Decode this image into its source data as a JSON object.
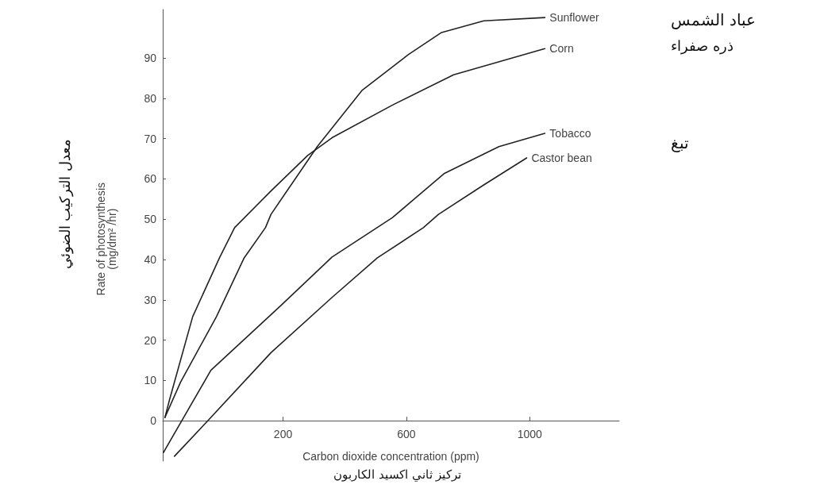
{
  "chart_data": {
    "type": "line",
    "xlabel": "Carbon dioxide concentration (ppm)",
    "ylabel": "Rate of photosynthesis\n(mg/dm² /hr)",
    "xlim": [
      -190,
      1290
    ],
    "xticks": [
      200,
      600,
      1000
    ],
    "ylim": [
      -10,
      102
    ],
    "yticks": [
      0,
      10,
      20,
      30,
      40,
      50,
      60,
      70,
      80,
      90
    ],
    "grid": false,
    "legend": false,
    "marker": "none",
    "line_style": "solid",
    "annotations": [
      "عباد الشمس",
      "ذره صفراء",
      "تبغ",
      "معدل التركيب الضوئي",
      "تركيز ثاني اكسيد الكاربون"
    ],
    "series": [
      {
        "name": "Sunflower",
        "color": "#222222",
        "x": [
          -183,
          -132,
          -16,
          74,
          143,
          161,
          311,
          457,
          606,
          714,
          851,
          1049
        ],
        "values": [
          0.8,
          9.6,
          25.8,
          40.4,
          47.9,
          51.2,
          68,
          82,
          90.8,
          96.3,
          99.2,
          100
        ]
      },
      {
        "name": "Corn",
        "color": "#222222",
        "x": [
          -183,
          -168,
          -93,
          -6,
          43,
          161,
          280,
          359,
          555,
          753,
          1049
        ],
        "values": [
          0.8,
          5.2,
          25.8,
          40.4,
          47.9,
          57,
          65.8,
          70.2,
          78.3,
          85.8,
          92.3
        ]
      },
      {
        "name": "Tobacco",
        "color": "#222222",
        "x": [
          -188,
          -34,
          192,
          359,
          555,
          722,
          900,
          1049
        ],
        "values": [
          -7.9,
          12.5,
          28.5,
          40.6,
          50.4,
          61.3,
          68,
          71.3
        ]
      },
      {
        "name": "Castor bean",
        "color": "#222222",
        "x": [
          -152,
          -44,
          161,
          359,
          506,
          655,
          704,
          851,
          990
        ],
        "values": [
          -8.8,
          0,
          16.9,
          30.6,
          40.4,
          47.9,
          51.2,
          58.5,
          65.2
        ]
      }
    ]
  }
}
